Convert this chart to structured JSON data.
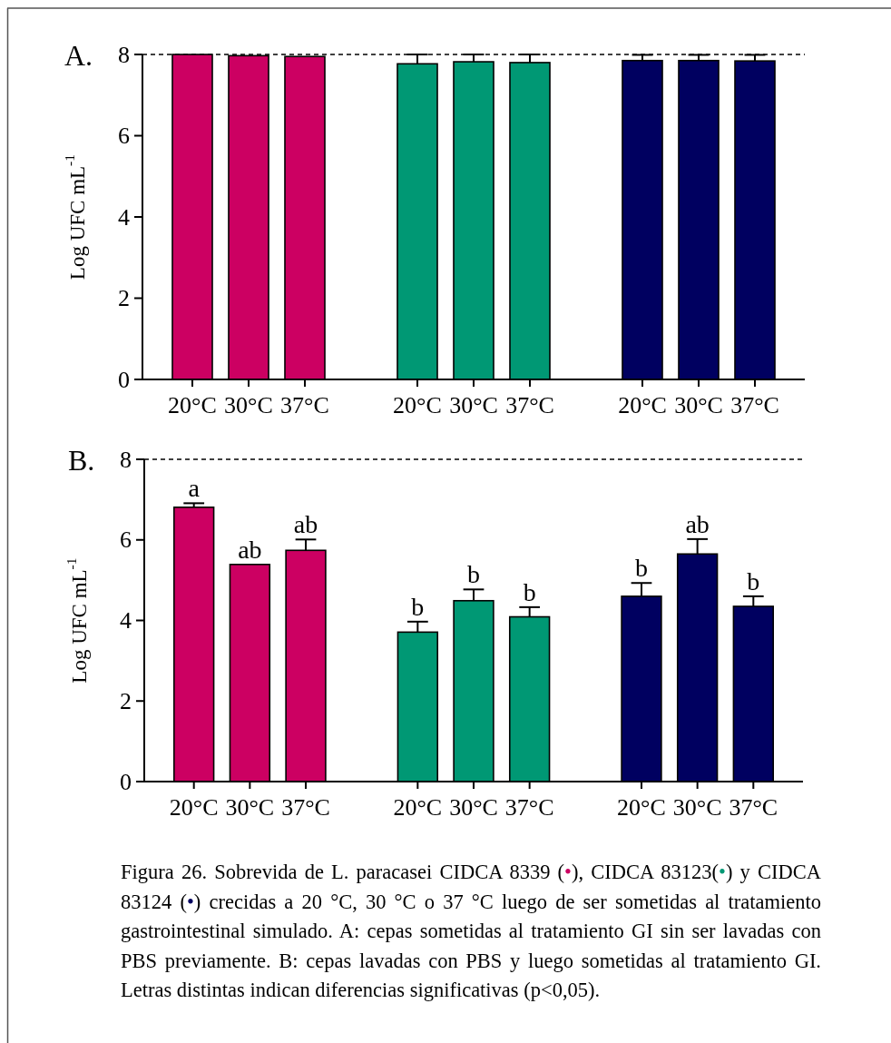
{
  "chart_data": [
    {
      "type": "bar",
      "title": "A.",
      "ylabel": "Log UFC mL$^{-1}$",
      "categories": [
        "20°C",
        "30°C",
        "37°C",
        null,
        "20°C",
        "30°C",
        "37°C",
        null,
        "20°C",
        "30°C",
        "37°C"
      ],
      "values": [
        8.0,
        7.97,
        7.95,
        null,
        7.77,
        7.82,
        7.8,
        null,
        7.85,
        7.85,
        7.84
      ],
      "colors": [
        "#cc0062",
        "#cc0062",
        "#cc0062",
        null,
        "#009874",
        "#009874",
        "#009874",
        null,
        "#000060",
        "#000060",
        "#000060"
      ],
      "errors": [
        null,
        null,
        null,
        null,
        [
          7.77,
          8.0
        ],
        [
          7.82,
          8.0
        ],
        [
          7.8,
          8.0
        ],
        null,
        [
          7.85,
          7.99
        ],
        [
          7.85,
          7.99
        ],
        [
          7.84,
          7.99
        ]
      ],
      "ylim": [
        0,
        8
      ],
      "yticks": [
        0,
        2,
        4,
        6,
        8
      ],
      "ref_lines": [
        {
          "axis": "y",
          "value": 8,
          "line_style": "dashed"
        }
      ]
    },
    {
      "type": "bar",
      "title": "B.",
      "ylabel": "Log UFC mL$^{-1}$",
      "categories": [
        "20°C",
        "30°C",
        "37°C",
        null,
        "20°C",
        "30°C",
        "37°C",
        null,
        "20°C",
        "30°C",
        "37°C"
      ],
      "values": [
        6.81,
        5.39,
        5.74,
        null,
        3.71,
        4.49,
        4.09,
        null,
        4.6,
        5.65,
        4.35
      ],
      "colors": [
        "#cc0062",
        "#cc0062",
        "#cc0062",
        null,
        "#009874",
        "#009874",
        "#009874",
        null,
        "#000060",
        "#000060",
        "#000060"
      ],
      "errors": [
        [
          6.81,
          6.91
        ],
        null,
        [
          5.74,
          6.01
        ],
        null,
        [
          3.71,
          3.97
        ],
        [
          4.49,
          4.77
        ],
        [
          4.09,
          4.33
        ],
        null,
        [
          4.6,
          4.93
        ],
        [
          5.65,
          6.02
        ],
        [
          4.35,
          4.6
        ]
      ],
      "value_labels": [
        "a",
        "ab",
        "ab",
        null,
        "b",
        "b",
        "b",
        null,
        "b",
        "ab",
        "b"
      ],
      "ylim": [
        0,
        8
      ],
      "yticks": [
        0,
        2,
        4,
        6,
        8
      ],
      "ref_lines": [
        {
          "axis": "y",
          "value": 8,
          "line_style": "dashed"
        }
      ],
      "annotations": [
        "Figura 26. Sobrevida de L. paracasei CIDCA 8339 (•), CIDCA 83123(•) y CIDCA 83124 (•) crecidas a 20 °C, 30 °C o 37 °C luego de ser sometidas al tratamiento gastrointestinal simulado. A: cepas sometidas al tratamiento GI sin ser lavadas con PBS previamente. B: cepas lavadas con PBS y luego sometidas al tratamiento GI. Letras distintas indican diferencias significativas (p<0,05)."
      ]
    }
  ]
}
